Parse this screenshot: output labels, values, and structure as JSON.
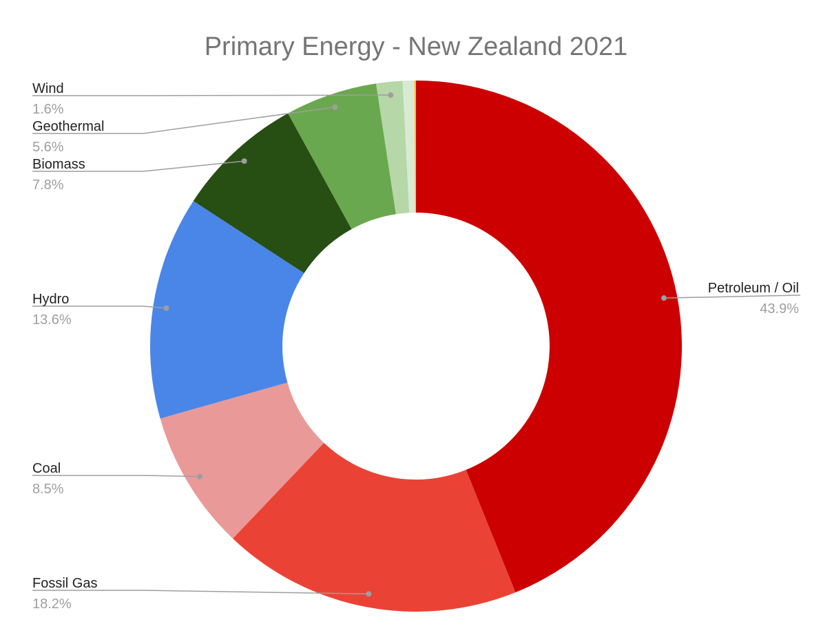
{
  "chart_data": {
    "type": "pie",
    "donut": true,
    "title": "Primary Energy - New Zealand 2021",
    "slices": [
      {
        "name": "Petroleum / Oil",
        "value": 43.9,
        "label": "43.9%",
        "color": "#cc0000"
      },
      {
        "name": "Fossil Gas",
        "value": 18.2,
        "label": "18.2%",
        "color": "#ea4335"
      },
      {
        "name": "Coal",
        "value": 8.5,
        "label": "8.5%",
        "color": "#ea9999"
      },
      {
        "name": "Hydro",
        "value": 13.6,
        "label": "13.6%",
        "color": "#4a86e8"
      },
      {
        "name": "Biomass",
        "value": 7.8,
        "label": "7.8%",
        "color": "#274e13"
      },
      {
        "name": "Geothermal",
        "value": 5.6,
        "label": "5.6%",
        "color": "#6aa84f"
      },
      {
        "name": "Wind",
        "value": 1.6,
        "label": "1.6%",
        "color": "#b6d7a8"
      },
      {
        "name": "",
        "value": 0.7,
        "label": "",
        "color": "#d9ead3"
      },
      {
        "name": "",
        "value": 0.1,
        "label": "",
        "color": "#f1c232"
      }
    ]
  }
}
